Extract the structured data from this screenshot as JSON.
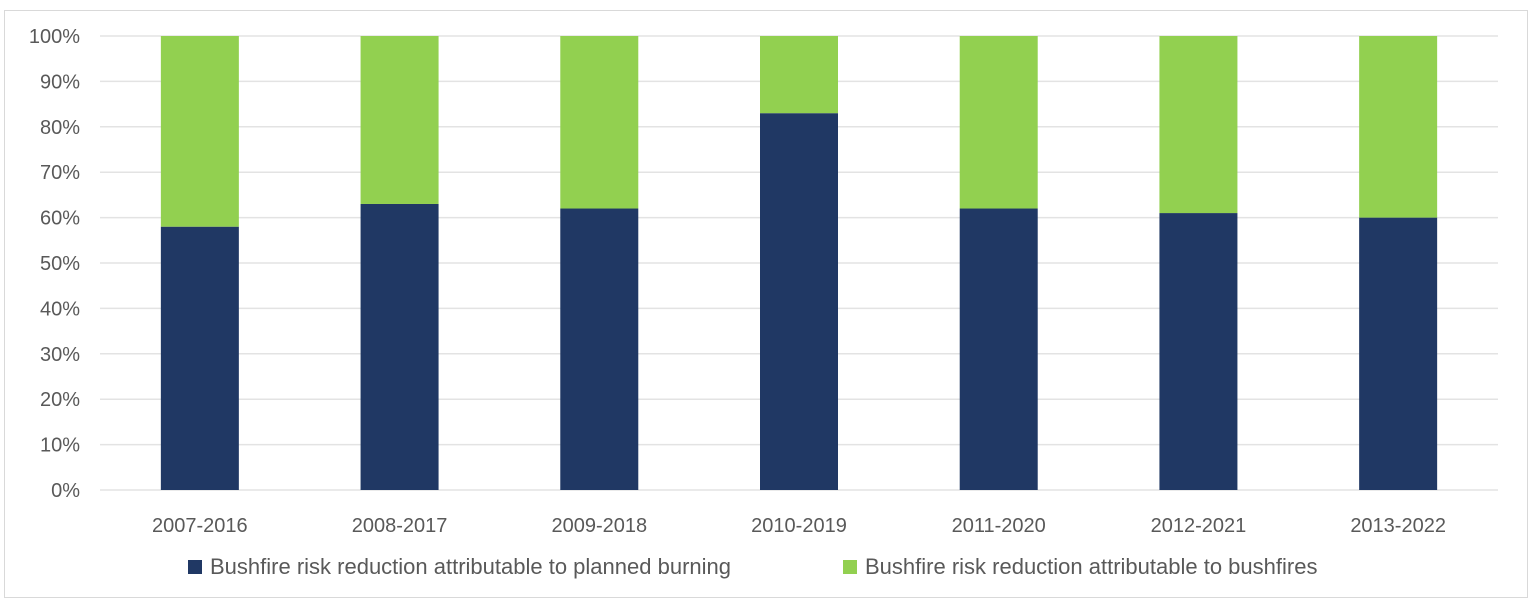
{
  "chart_data": {
    "type": "bar",
    "stacked": true,
    "categories": [
      "2007-2016",
      "2008-2017",
      "2009-2018",
      "2010-2019",
      "2011-2020",
      "2012-2021",
      "2013-2022"
    ],
    "series": [
      {
        "name": "Bushfire risk reduction attributable to planned burning",
        "color": "#203864",
        "values": [
          58,
          63,
          62,
          83,
          62,
          61,
          60
        ]
      },
      {
        "name": "Bushfire risk reduction attributable to bushfires",
        "color": "#92d050",
        "values": [
          42,
          37,
          38,
          17,
          38,
          39,
          40
        ]
      }
    ],
    "yticks": [
      "0%",
      "10%",
      "20%",
      "30%",
      "40%",
      "50%",
      "60%",
      "70%",
      "80%",
      "90%",
      "100%"
    ],
    "ylim": [
      0,
      100
    ],
    "grid": true,
    "legend_position": "bottom"
  }
}
